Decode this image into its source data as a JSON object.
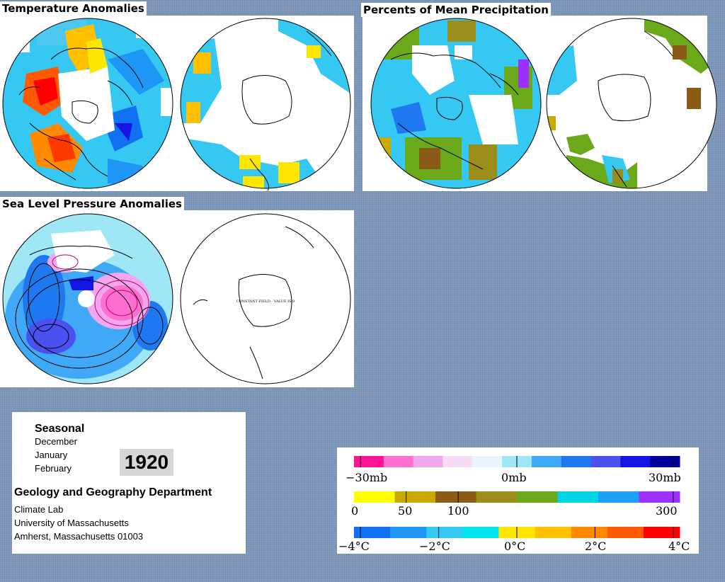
{
  "panels": {
    "temperature": {
      "title": "Temperature Anomalies"
    },
    "precipitation": {
      "title": "Percents of Mean Precipitation"
    },
    "pressure": {
      "title": "Sea Level Pressure Anomalies",
      "south_note": "CONSTANT FIELD - VALUE IS 0"
    }
  },
  "info": {
    "season": "Seasonal",
    "months": [
      "December",
      "January",
      "February"
    ],
    "year": "1920",
    "department": "Geology and Geography Department",
    "lab": "Climate Lab",
    "university": "University of Massachusetts",
    "address": "Amherst, Massachusetts 01003"
  },
  "legends": {
    "pressure": {
      "labels": [
        "−30mb",
        "0mb",
        "30mb"
      ],
      "colors": [
        "#ff1493",
        "#ff6fd0",
        "#f2a6ee",
        "#f5dcf5",
        "#e8f6fb",
        "#9fe6f6",
        "#3fa9f7",
        "#1e78f0",
        "#4b50f0",
        "#1414e6",
        "#000098"
      ]
    },
    "precipitation": {
      "labels": [
        "0",
        "50",
        "100",
        "300"
      ],
      "colors": [
        "#ffff00",
        "#c8aa00",
        "#8b5a16",
        "#9a8d1a",
        "#6aaa1a",
        "#00d5e5",
        "#1ea0f8",
        "#9b30ff"
      ]
    },
    "temperature": {
      "labels": [
        "−4°C",
        "−2°C",
        "0°C",
        "2°C",
        "4°C"
      ],
      "colors": [
        "#1070f0",
        "#1e96f5",
        "#34c8f3",
        "#00e5ee",
        "#ffe600",
        "#ffc000",
        "#ff8a00",
        "#ff5a00",
        "#ff0000"
      ]
    }
  }
}
